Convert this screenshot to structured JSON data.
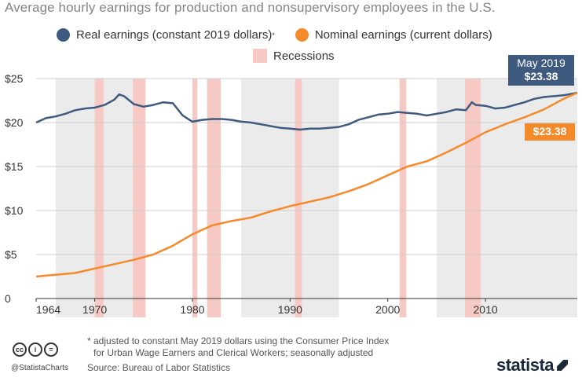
{
  "title": "Average hourly earnings for production and nonsupervisory employees in the U.S.",
  "legend": {
    "real_label": "Real earnings (constant 2019 dollars)",
    "real_sup": "*",
    "nominal_label": "Nominal earnings (current dollars)",
    "recessions_label": "Recessions"
  },
  "colors": {
    "real": "#3e5a7f",
    "nominal": "#f48a2a",
    "recession": "#f6c9c4",
    "decade_band": "#ebebeb"
  },
  "callouts": {
    "real_date": "May 2019",
    "real_value": "$23.38",
    "nominal_value": "$23.38"
  },
  "chart_data": {
    "type": "line",
    "x_range": [
      1964,
      2019.4
    ],
    "ylim": [
      0,
      25
    ],
    "y_ticks": [
      0,
      5,
      10,
      15,
      20,
      25
    ],
    "y_tick_labels": [
      "0",
      "$5",
      "$10",
      "$15",
      "$20",
      "$25"
    ],
    "x_ticks": [
      1964,
      1970,
      1980,
      1990,
      2000,
      2010
    ],
    "x_tick_labels": [
      "1964",
      "1970",
      "1980",
      "1990",
      "2000",
      "2010"
    ],
    "decade_bands": [
      [
        1966,
        1975
      ],
      [
        1985,
        1995
      ],
      [
        2005,
        2019.4
      ]
    ],
    "recessions": [
      [
        1970.0,
        1970.9
      ],
      [
        1973.9,
        1975.2
      ],
      [
        1980.0,
        1980.5
      ],
      [
        1981.5,
        1982.9
      ],
      [
        1990.5,
        1991.2
      ],
      [
        2001.2,
        2001.9
      ],
      [
        2007.9,
        2009.5
      ]
    ],
    "series": [
      {
        "name": "Real earnings (constant 2019 dollars)",
        "x": [
          1964,
          1965,
          1966,
          1967,
          1968,
          1969,
          1970,
          1971,
          1972,
          1972.5,
          1973,
          1974,
          1975,
          1976,
          1977,
          1978,
          1979,
          1980,
          1981,
          1982,
          1983,
          1984,
          1985,
          1986,
          1987,
          1988,
          1989,
          1990,
          1991,
          1992,
          1993,
          1994,
          1995,
          1996,
          1997,
          1998,
          1999,
          2000,
          2001,
          2002,
          2003,
          2004,
          2005,
          2006,
          2007,
          2008,
          2008.6,
          2009,
          2010,
          2011,
          2012,
          2013,
          2014,
          2015,
          2016,
          2017,
          2018,
          2019.4
        ],
        "values": [
          20.0,
          20.5,
          20.7,
          21.0,
          21.4,
          21.6,
          21.7,
          22.0,
          22.6,
          23.2,
          23.0,
          22.1,
          21.8,
          22.0,
          22.3,
          22.2,
          20.8,
          20.1,
          20.3,
          20.4,
          20.4,
          20.3,
          20.1,
          20.0,
          19.8,
          19.6,
          19.4,
          19.3,
          19.2,
          19.3,
          19.3,
          19.4,
          19.5,
          19.8,
          20.3,
          20.6,
          20.9,
          21.0,
          21.2,
          21.1,
          21.0,
          20.8,
          21.0,
          21.2,
          21.5,
          21.4,
          22.3,
          22.0,
          21.9,
          21.6,
          21.7,
          22.0,
          22.3,
          22.7,
          22.9,
          23.0,
          23.1,
          23.38
        ]
      },
      {
        "name": "Nominal earnings (current dollars)",
        "x": [
          1964,
          1966,
          1968,
          1970,
          1972,
          1974,
          1976,
          1978,
          1980,
          1982,
          1984,
          1986,
          1988,
          1990,
          1992,
          1994,
          1996,
          1998,
          2000,
          2002,
          2004,
          2006,
          2008,
          2010,
          2012,
          2014,
          2016,
          2018,
          2019.4
        ],
        "values": [
          2.5,
          2.7,
          2.9,
          3.4,
          3.9,
          4.4,
          5.0,
          6.0,
          7.3,
          8.3,
          8.8,
          9.2,
          9.9,
          10.5,
          11.0,
          11.5,
          12.2,
          13.0,
          14.0,
          15.0,
          15.6,
          16.6,
          17.7,
          18.9,
          19.8,
          20.6,
          21.5,
          22.7,
          23.38
        ]
      }
    ],
    "footnote_line1": "* adjusted to constant May 2019 dollars using the Consumer Price Index",
    "footnote_line2": "for Urban Wage Earners and Clerical Workers; seasonally adjusted",
    "source": "Source: Bureau of Labor Statistics"
  },
  "footer": {
    "handle": "@StatistaCharts",
    "logo_text": "statista",
    "cc_icons": [
      "cc-icon",
      "by-icon",
      "equals-icon"
    ],
    "cc_glyphs": [
      "cc",
      "i",
      "="
    ]
  }
}
